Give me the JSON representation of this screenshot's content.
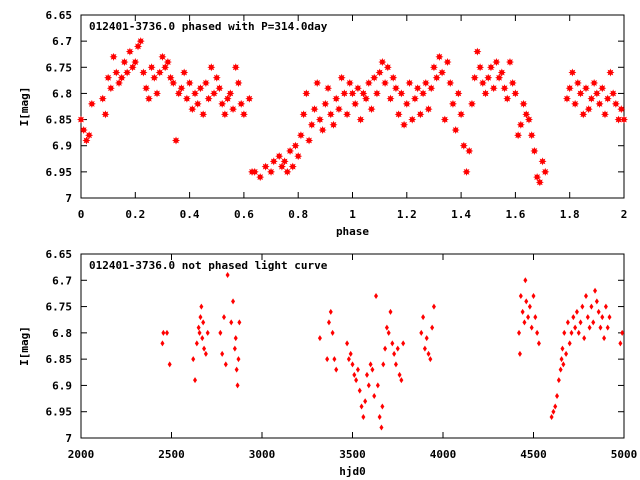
{
  "colors": {
    "points": "#ff0000",
    "axes": "#000000",
    "background": "#ffffff"
  },
  "chart_data": [
    {
      "type": "scatter",
      "title": "012401-3736.0 phased with P=314.0day",
      "xlabel": "phase",
      "ylabel": "I[mag]",
      "xlim": [
        0,
        2
      ],
      "ylim": [
        6.65,
        7
      ],
      "y_inverted": true,
      "grid": false,
      "marker": "filled-star",
      "x_ticks": [
        "0",
        "0.2",
        "0.4",
        "0.6",
        "0.8",
        "1",
        "1.2",
        "1.4",
        "1.6",
        "1.8",
        "2"
      ],
      "y_ticks": [
        "6.65",
        "6.7",
        "6.75",
        "6.8",
        "6.85",
        "6.9",
        "6.95",
        "7"
      ],
      "points": [
        [
          0.0,
          6.85
        ],
        [
          0.01,
          6.87
        ],
        [
          0.02,
          6.89
        ],
        [
          0.03,
          6.88
        ],
        [
          0.04,
          6.82
        ],
        [
          0.08,
          6.81
        ],
        [
          0.09,
          6.84
        ],
        [
          0.1,
          6.77
        ],
        [
          0.11,
          6.79
        ],
        [
          0.12,
          6.73
        ],
        [
          0.13,
          6.76
        ],
        [
          0.14,
          6.78
        ],
        [
          0.15,
          6.77
        ],
        [
          0.16,
          6.74
        ],
        [
          0.17,
          6.76
        ],
        [
          0.18,
          6.72
        ],
        [
          0.19,
          6.75
        ],
        [
          0.2,
          6.74
        ],
        [
          0.21,
          6.71
        ],
        [
          0.22,
          6.7
        ],
        [
          0.23,
          6.76
        ],
        [
          0.24,
          6.79
        ],
        [
          0.25,
          6.81
        ],
        [
          0.26,
          6.75
        ],
        [
          0.27,
          6.77
        ],
        [
          0.28,
          6.8
        ],
        [
          0.29,
          6.76
        ],
        [
          0.3,
          6.73
        ],
        [
          0.31,
          6.75
        ],
        [
          0.32,
          6.74
        ],
        [
          0.33,
          6.77
        ],
        [
          0.34,
          6.78
        ],
        [
          0.35,
          6.89
        ],
        [
          0.36,
          6.8
        ],
        [
          0.37,
          6.79
        ],
        [
          0.38,
          6.76
        ],
        [
          0.39,
          6.81
        ],
        [
          0.4,
          6.78
        ],
        [
          0.41,
          6.83
        ],
        [
          0.42,
          6.8
        ],
        [
          0.43,
          6.82
        ],
        [
          0.44,
          6.79
        ],
        [
          0.45,
          6.84
        ],
        [
          0.46,
          6.78
        ],
        [
          0.47,
          6.81
        ],
        [
          0.48,
          6.75
        ],
        [
          0.49,
          6.8
        ],
        [
          0.5,
          6.77
        ],
        [
          0.51,
          6.79
        ],
        [
          0.52,
          6.82
        ],
        [
          0.53,
          6.84
        ],
        [
          0.54,
          6.81
        ],
        [
          0.55,
          6.8
        ],
        [
          0.56,
          6.83
        ],
        [
          0.57,
          6.75
        ],
        [
          0.58,
          6.78
        ],
        [
          0.59,
          6.82
        ],
        [
          0.6,
          6.84
        ],
        [
          0.62,
          6.81
        ],
        [
          0.63,
          6.95
        ],
        [
          0.64,
          6.95
        ],
        [
          0.66,
          6.96
        ],
        [
          0.68,
          6.94
        ],
        [
          0.7,
          6.95
        ],
        [
          0.71,
          6.93
        ],
        [
          0.73,
          6.92
        ],
        [
          0.74,
          6.94
        ],
        [
          0.75,
          6.93
        ],
        [
          0.76,
          6.95
        ],
        [
          0.77,
          6.91
        ],
        [
          0.78,
          6.94
        ],
        [
          0.79,
          6.9
        ],
        [
          0.8,
          6.92
        ],
        [
          0.81,
          6.88
        ],
        [
          0.82,
          6.84
        ],
        [
          0.83,
          6.8
        ],
        [
          0.84,
          6.89
        ],
        [
          0.85,
          6.86
        ],
        [
          0.86,
          6.83
        ],
        [
          0.87,
          6.78
        ],
        [
          0.88,
          6.85
        ],
        [
          0.89,
          6.87
        ],
        [
          0.9,
          6.82
        ],
        [
          0.91,
          6.79
        ],
        [
          0.92,
          6.84
        ],
        [
          0.93,
          6.86
        ],
        [
          0.94,
          6.81
        ],
        [
          0.95,
          6.83
        ],
        [
          0.96,
          6.77
        ],
        [
          0.97,
          6.8
        ],
        [
          0.98,
          6.84
        ],
        [
          0.99,
          6.78
        ],
        [
          1.0,
          6.8
        ],
        [
          1.01,
          6.82
        ],
        [
          1.02,
          6.79
        ],
        [
          1.03,
          6.85
        ],
        [
          1.04,
          6.8
        ],
        [
          1.05,
          6.81
        ],
        [
          1.06,
          6.78
        ],
        [
          1.07,
          6.83
        ],
        [
          1.08,
          6.77
        ],
        [
          1.09,
          6.8
        ],
        [
          1.1,
          6.76
        ],
        [
          1.11,
          6.74
        ],
        [
          1.12,
          6.78
        ],
        [
          1.13,
          6.75
        ],
        [
          1.14,
          6.81
        ],
        [
          1.15,
          6.77
        ],
        [
          1.16,
          6.79
        ],
        [
          1.17,
          6.84
        ],
        [
          1.18,
          6.8
        ],
        [
          1.19,
          6.86
        ],
        [
          1.2,
          6.82
        ],
        [
          1.21,
          6.78
        ],
        [
          1.22,
          6.85
        ],
        [
          1.23,
          6.81
        ],
        [
          1.24,
          6.79
        ],
        [
          1.25,
          6.84
        ],
        [
          1.26,
          6.8
        ],
        [
          1.27,
          6.78
        ],
        [
          1.28,
          6.83
        ],
        [
          1.29,
          6.79
        ],
        [
          1.3,
          6.75
        ],
        [
          1.31,
          6.77
        ],
        [
          1.32,
          6.73
        ],
        [
          1.33,
          6.76
        ],
        [
          1.34,
          6.85
        ],
        [
          1.35,
          6.74
        ],
        [
          1.36,
          6.78
        ],
        [
          1.37,
          6.82
        ],
        [
          1.38,
          6.87
        ],
        [
          1.39,
          6.8
        ],
        [
          1.4,
          6.84
        ],
        [
          1.41,
          6.9
        ],
        [
          1.42,
          6.95
        ],
        [
          1.43,
          6.91
        ],
        [
          1.44,
          6.82
        ],
        [
          1.45,
          6.77
        ],
        [
          1.46,
          6.72
        ],
        [
          1.47,
          6.75
        ],
        [
          1.48,
          6.78
        ],
        [
          1.49,
          6.8
        ],
        [
          1.5,
          6.77
        ],
        [
          1.51,
          6.75
        ],
        [
          1.52,
          6.79
        ],
        [
          1.53,
          6.74
        ],
        [
          1.54,
          6.77
        ],
        [
          1.55,
          6.76
        ],
        [
          1.56,
          6.79
        ],
        [
          1.57,
          6.81
        ],
        [
          1.58,
          6.74
        ],
        [
          1.59,
          6.78
        ],
        [
          1.6,
          6.8
        ],
        [
          1.61,
          6.88
        ],
        [
          1.62,
          6.86
        ],
        [
          1.63,
          6.82
        ],
        [
          1.64,
          6.84
        ],
        [
          1.65,
          6.85
        ],
        [
          1.66,
          6.88
        ],
        [
          1.67,
          6.91
        ],
        [
          1.68,
          6.96
        ],
        [
          1.69,
          6.97
        ],
        [
          1.7,
          6.93
        ],
        [
          1.71,
          6.95
        ],
        [
          1.79,
          6.81
        ],
        [
          1.8,
          6.79
        ],
        [
          1.81,
          6.76
        ],
        [
          1.82,
          6.82
        ],
        [
          1.83,
          6.78
        ],
        [
          1.84,
          6.8
        ],
        [
          1.85,
          6.84
        ],
        [
          1.86,
          6.79
        ],
        [
          1.87,
          6.83
        ],
        [
          1.88,
          6.81
        ],
        [
          1.89,
          6.78
        ],
        [
          1.9,
          6.8
        ],
        [
          1.91,
          6.82
        ],
        [
          1.92,
          6.79
        ],
        [
          1.93,
          6.84
        ],
        [
          1.94,
          6.81
        ],
        [
          1.95,
          6.76
        ],
        [
          1.96,
          6.8
        ],
        [
          1.97,
          6.82
        ],
        [
          1.98,
          6.85
        ],
        [
          1.99,
          6.83
        ],
        [
          2.0,
          6.85
        ]
      ]
    },
    {
      "type": "scatter",
      "title": "012401-3736.0 not phased light curve",
      "xlabel": "hjd0",
      "ylabel": "I[mag]",
      "xlim": [
        2000,
        5000
      ],
      "ylim": [
        6.65,
        7
      ],
      "y_inverted": true,
      "grid": false,
      "marker": "diamond",
      "x_ticks": [
        "2000",
        "2500",
        "3000",
        "3500",
        "4000",
        "4500",
        "5000"
      ],
      "y_ticks": [
        "6.65",
        "6.7",
        "6.75",
        "6.8",
        "6.85",
        "6.9",
        "6.95",
        "7"
      ],
      "points": [
        [
          2450,
          6.82
        ],
        [
          2455,
          6.8
        ],
        [
          2475,
          6.8
        ],
        [
          2490,
          6.86
        ],
        [
          2620,
          6.85
        ],
        [
          2630,
          6.89
        ],
        [
          2640,
          6.82
        ],
        [
          2650,
          6.79
        ],
        [
          2655,
          6.8
        ],
        [
          2660,
          6.77
        ],
        [
          2665,
          6.75
        ],
        [
          2670,
          6.81
        ],
        [
          2675,
          6.78
        ],
        [
          2680,
          6.83
        ],
        [
          2690,
          6.84
        ],
        [
          2700,
          6.8
        ],
        [
          2770,
          6.8
        ],
        [
          2780,
          6.84
        ],
        [
          2790,
          6.77
        ],
        [
          2800,
          6.86
        ],
        [
          2810,
          6.69
        ],
        [
          2830,
          6.78
        ],
        [
          2840,
          6.74
        ],
        [
          2850,
          6.83
        ],
        [
          2855,
          6.81
        ],
        [
          2860,
          6.87
        ],
        [
          2865,
          6.9
        ],
        [
          2870,
          6.85
        ],
        [
          2875,
          6.78
        ],
        [
          3320,
          6.81
        ],
        [
          3360,
          6.85
        ],
        [
          3370,
          6.78
        ],
        [
          3380,
          6.76
        ],
        [
          3390,
          6.8
        ],
        [
          3400,
          6.85
        ],
        [
          3410,
          6.87
        ],
        [
          3470,
          6.82
        ],
        [
          3480,
          6.85
        ],
        [
          3490,
          6.84
        ],
        [
          3500,
          6.86
        ],
        [
          3510,
          6.88
        ],
        [
          3520,
          6.89
        ],
        [
          3530,
          6.87
        ],
        [
          3540,
          6.91
        ],
        [
          3550,
          6.94
        ],
        [
          3560,
          6.96
        ],
        [
          3570,
          6.93
        ],
        [
          3580,
          6.88
        ],
        [
          3590,
          6.9
        ],
        [
          3600,
          6.86
        ],
        [
          3610,
          6.87
        ],
        [
          3620,
          6.92
        ],
        [
          3630,
          6.73
        ],
        [
          3640,
          6.9
        ],
        [
          3650,
          6.96
        ],
        [
          3660,
          6.98
        ],
        [
          3665,
          6.94
        ],
        [
          3670,
          6.86
        ],
        [
          3680,
          6.83
        ],
        [
          3690,
          6.79
        ],
        [
          3700,
          6.8
        ],
        [
          3710,
          6.76
        ],
        [
          3720,
          6.82
        ],
        [
          3730,
          6.84
        ],
        [
          3740,
          6.86
        ],
        [
          3750,
          6.83
        ],
        [
          3760,
          6.88
        ],
        [
          3770,
          6.89
        ],
        [
          3780,
          6.82
        ],
        [
          3880,
          6.8
        ],
        [
          3890,
          6.77
        ],
        [
          3900,
          6.83
        ],
        [
          3910,
          6.81
        ],
        [
          3920,
          6.84
        ],
        [
          3930,
          6.85
        ],
        [
          3940,
          6.79
        ],
        [
          3950,
          6.75
        ],
        [
          4420,
          6.8
        ],
        [
          4425,
          6.84
        ],
        [
          4430,
          6.73
        ],
        [
          4440,
          6.76
        ],
        [
          4450,
          6.78
        ],
        [
          4455,
          6.7
        ],
        [
          4460,
          6.74
        ],
        [
          4470,
          6.77
        ],
        [
          4480,
          6.75
        ],
        [
          4490,
          6.79
        ],
        [
          4500,
          6.73
        ],
        [
          4510,
          6.77
        ],
        [
          4520,
          6.8
        ],
        [
          4530,
          6.82
        ],
        [
          4600,
          6.96
        ],
        [
          4610,
          6.95
        ],
        [
          4620,
          6.94
        ],
        [
          4630,
          6.92
        ],
        [
          4640,
          6.89
        ],
        [
          4650,
          6.87
        ],
        [
          4655,
          6.85
        ],
        [
          4660,
          6.83
        ],
        [
          4665,
          6.86
        ],
        [
          4670,
          6.8
        ],
        [
          4680,
          6.84
        ],
        [
          4690,
          6.78
        ],
        [
          4700,
          6.82
        ],
        [
          4710,
          6.8
        ],
        [
          4720,
          6.77
        ],
        [
          4730,
          6.79
        ],
        [
          4740,
          6.76
        ],
        [
          4750,
          6.8
        ],
        [
          4760,
          6.78
        ],
        [
          4770,
          6.75
        ],
        [
          4780,
          6.81
        ],
        [
          4790,
          6.73
        ],
        [
          4800,
          6.77
        ],
        [
          4810,
          6.79
        ],
        [
          4820,
          6.75
        ],
        [
          4830,
          6.78
        ],
        [
          4840,
          6.72
        ],
        [
          4850,
          6.74
        ],
        [
          4860,
          6.76
        ],
        [
          4870,
          6.79
        ],
        [
          4880,
          6.77
        ],
        [
          4890,
          6.81
        ],
        [
          4900,
          6.75
        ],
        [
          4910,
          6.79
        ],
        [
          4920,
          6.77
        ],
        [
          4980,
          6.82
        ],
        [
          4990,
          6.8
        ]
      ]
    }
  ]
}
